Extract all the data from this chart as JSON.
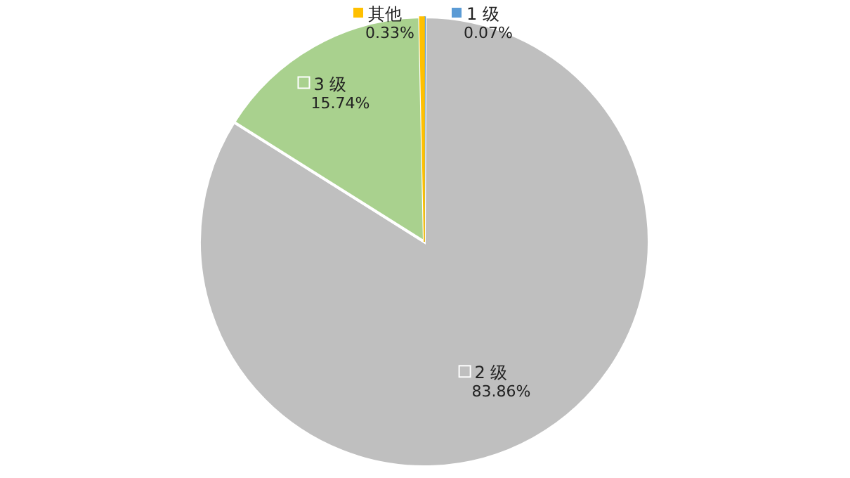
{
  "chart_data": {
    "type": "pie",
    "categories": [
      "1 级",
      "2 级",
      "3 级",
      "其他"
    ],
    "values": [
      0.07,
      83.86,
      15.74,
      0.33
    ],
    "colors": [
      "#5b9bd5",
      "#bfbfbf",
      "#a9d18e",
      "#ffc000"
    ],
    "value_labels": [
      "0.07%",
      "83.86%",
      "15.74%",
      "0.33%"
    ],
    "legend": "top"
  }
}
